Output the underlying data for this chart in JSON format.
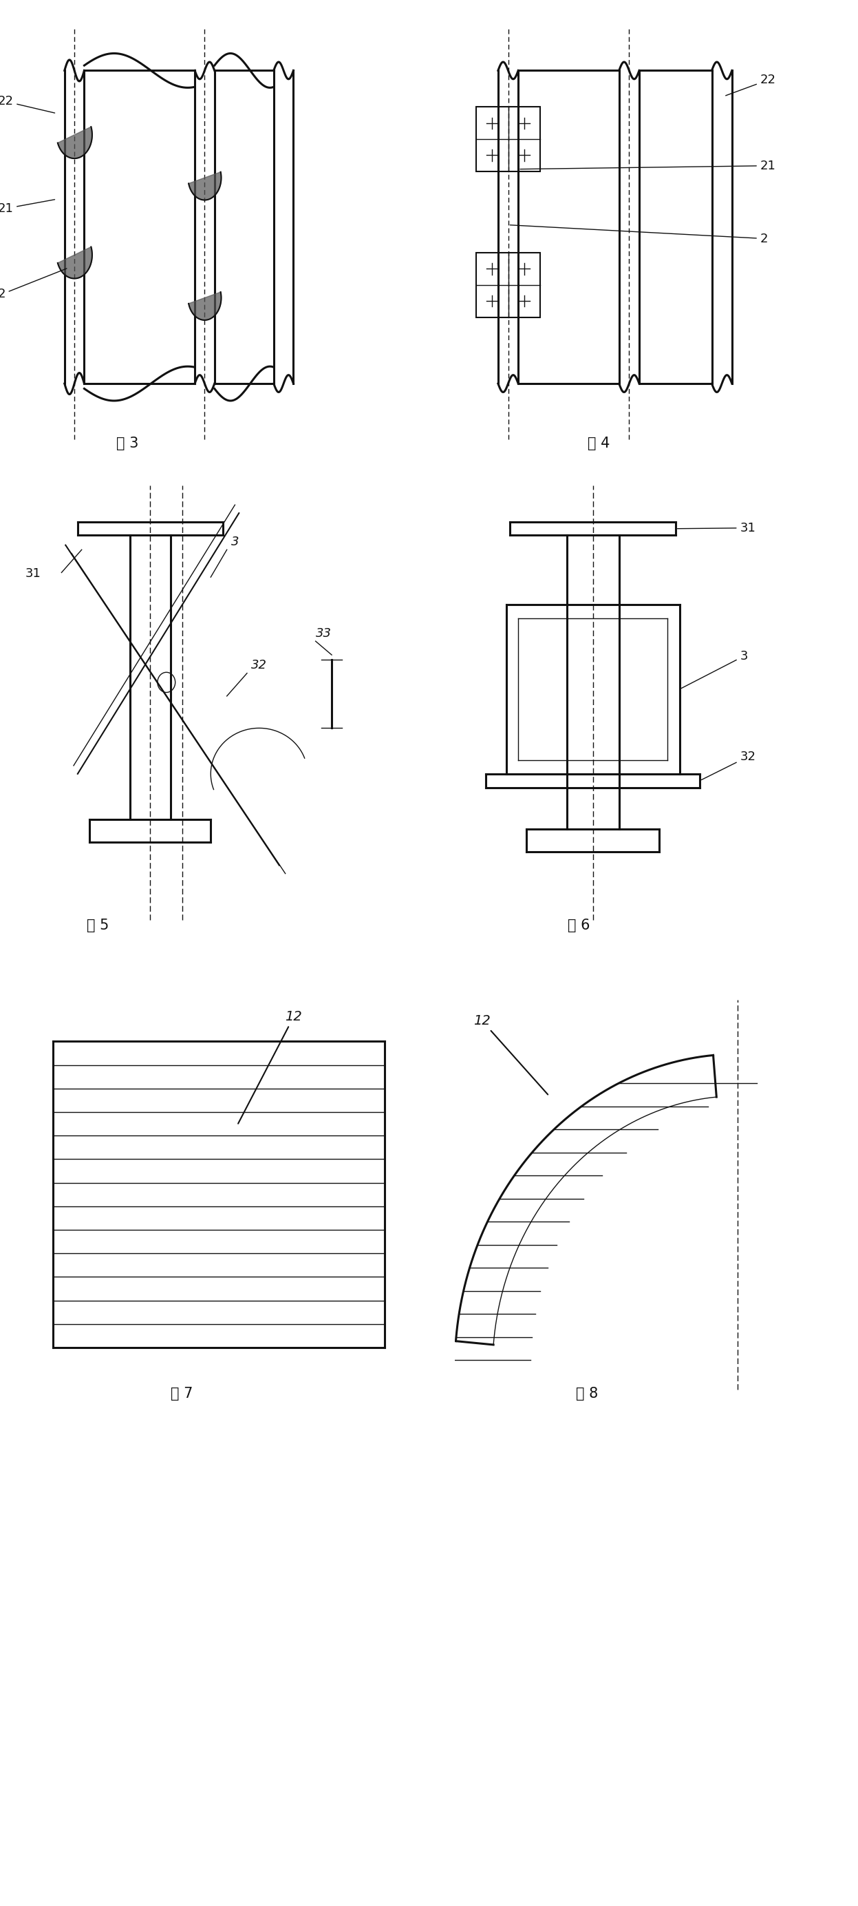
{
  "bg_color": "#ffffff",
  "line_color": "#111111",
  "fig_width": 12.47,
  "fig_height": 27.68,
  "lw_thick": 2.2,
  "lw_med": 1.5,
  "lw_thin": 1.0,
  "labels": {
    "fig3": "图 3",
    "fig4": "图 4",
    "fig5": "图 5",
    "fig6": "图 6",
    "fig7": "图 7",
    "fig8": "图 8"
  }
}
